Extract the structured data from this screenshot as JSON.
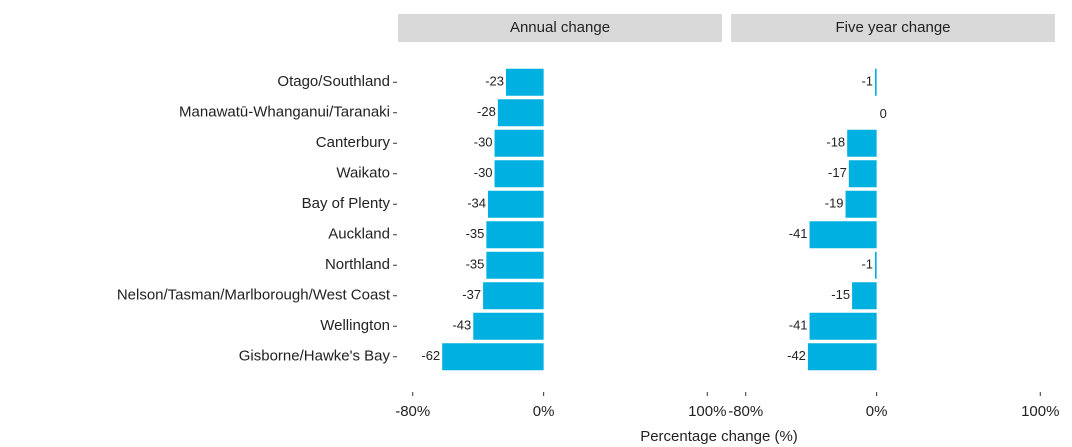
{
  "chart_data": [
    {
      "type": "bar",
      "title": "Annual change",
      "categories": [
        "Otago/Southland",
        "Manawatū-Whanganui/Taranaki",
        "Canterbury",
        "Waikato",
        "Bay of Plenty",
        "Auckland",
        "Northland",
        "Nelson/Tasman/Marlborough/West Coast",
        "Wellington",
        "Gisborne/Hawke's Bay"
      ],
      "values": [
        -23,
        -28,
        -30,
        -30,
        -34,
        -35,
        -35,
        -37,
        -43,
        -62
      ],
      "color": "#00b0e0",
      "xlim": [
        -89,
        109
      ],
      "xticks": [
        {
          "value": -80,
          "label": "-80%"
        },
        {
          "value": 0,
          "label": "0%"
        },
        {
          "value": 100,
          "label": "100%"
        }
      ],
      "xlabel": "Percentage change (%)"
    },
    {
      "type": "bar",
      "title": "Five year change",
      "values": [
        -1,
        0,
        -18,
        -17,
        -19,
        -41,
        -1,
        -15,
        -41,
        -42
      ],
      "color": "#00b0e0",
      "xlim": [
        -89,
        109
      ],
      "xticks": [
        {
          "value": -80,
          "label": "-80%"
        },
        {
          "value": 0,
          "label": "0%"
        },
        {
          "value": 100,
          "label": "100%"
        }
      ]
    }
  ]
}
